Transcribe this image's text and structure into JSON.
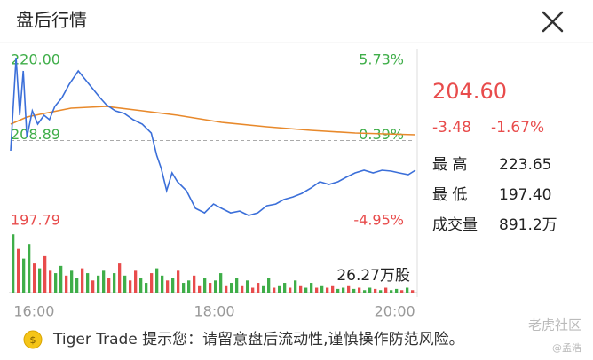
{
  "header": {
    "title": "盘后行情"
  },
  "quote": {
    "price": "204.60",
    "change": "-3.48",
    "change_pct": "-1.67%",
    "stats": [
      {
        "label": "最 高",
        "value": "223.65"
      },
      {
        "label": "最 低",
        "value": "197.40"
      },
      {
        "label": "成交量",
        "value": "891.2万"
      }
    ]
  },
  "notice": "Tiger Trade 提示您：请留意盘后流动性,谨慎操作防范风险。",
  "watermark": {
    "brand": "老虎社区",
    "author": "@孟浩"
  },
  "chart_data": [
    {
      "type": "line",
      "up_color": "#3fae49",
      "down_color": "#e84c4c",
      "xlim": [
        15.74,
        20.23
      ],
      "xticks": [
        {
          "value": 16,
          "label": "16:00"
        },
        {
          "value": 18,
          "label": "18:00"
        },
        {
          "value": 20,
          "label": "20:00"
        }
      ],
      "ylim": [
        197.79,
        220
      ],
      "yticks": [
        {
          "value": 220,
          "label": "220.00"
        },
        208.89,
        197.79
      ],
      "y2lim": [
        -4.95,
        5.73
      ],
      "y2ticks": [
        {
          "value": 5.73,
          "label": "5.73%"
        },
        {
          "value": 0.39,
          "label": "0.39%"
        },
        {
          "value": -4.95,
          "label": "-4.95%"
        }
      ],
      "series": [
        {
          "color": "#3b6fd9",
          "x": [
            15.74,
            15.8,
            15.84,
            15.88,
            15.92,
            15.98,
            16.04,
            16.11,
            16.17,
            16.23,
            16.31,
            16.39,
            16.49,
            16.57,
            16.65,
            16.73,
            16.8,
            16.9,
            17.0,
            17.1,
            17.2,
            17.3,
            17.36,
            17.41,
            17.47,
            17.53,
            17.59,
            17.69,
            17.79,
            17.89,
            17.99,
            18.08,
            18.18,
            18.28,
            18.38,
            18.48,
            18.58,
            18.68,
            18.77,
            18.87,
            18.97,
            19.07,
            19.17,
            19.27,
            19.37,
            19.46,
            19.56,
            19.66,
            19.76,
            19.86,
            19.96,
            20.05,
            20.15,
            20.23
          ],
          "values": [
            207.57,
            219.65,
            212.17,
            217.93,
            209.3,
            212.75,
            211.02,
            212.17,
            211.6,
            213.32,
            214.48,
            216.2,
            217.93,
            216.78,
            215.63,
            214.48,
            213.55,
            212.75,
            212.4,
            211.6,
            211.02,
            209.87,
            206.99,
            205.27,
            202.39,
            204.69,
            203.54,
            202.39,
            200.09,
            199.51,
            200.66,
            200.09,
            199.51,
            199.74,
            199.17,
            199.51,
            200.43,
            200.66,
            201.24,
            201.58,
            202.04,
            202.73,
            203.54,
            203.2,
            203.54,
            204.12,
            204.69,
            205.04,
            204.69,
            205.04,
            204.92,
            204.69,
            204.46,
            205.04
          ]
        },
        {
          "color": "#e8892b",
          "x": [
            15.74,
            15.92,
            16.11,
            16.41,
            16.8,
            17.2,
            17.59,
            18.08,
            18.58,
            19.07,
            19.56,
            20.23
          ],
          "values": [
            211.02,
            211.94,
            212.4,
            213.09,
            213.32,
            212.75,
            212.17,
            211.25,
            210.68,
            210.22,
            209.87,
            209.64
          ]
        }
      ]
    },
    {
      "type": "bar",
      "ylim": [
        0,
        26.27
      ],
      "yticks": [
        {
          "value": 26.27,
          "label": "26.27万股"
        }
      ],
      "values": [
        24,
        18,
        14,
        20,
        12,
        10,
        15,
        9,
        8,
        11,
        7,
        9,
        6,
        10,
        8,
        5,
        7,
        9,
        6,
        8,
        12,
        7,
        5,
        9,
        6,
        4,
        8,
        10,
        7,
        5,
        6,
        9,
        4,
        5,
        7,
        3,
        6,
        4,
        5,
        8,
        3,
        4,
        6,
        3,
        5,
        2,
        4,
        3,
        6,
        2,
        3,
        4,
        2,
        5,
        3,
        2,
        4,
        2,
        3,
        2,
        3,
        1.5,
        2,
        3,
        1.5,
        2,
        1,
        2,
        1.5,
        1,
        2,
        1,
        1.5,
        1,
        2,
        1
      ],
      "colors": [
        "#3fae49",
        "#e84c4c",
        "#3fae49",
        "#3fae49",
        "#e84c4c",
        "#3fae49",
        "#e84c4c",
        "#e84c4c",
        "#3fae49",
        "#3fae49",
        "#e84c4c",
        "#3fae49",
        "#3fae49",
        "#e84c4c",
        "#3fae49",
        "#e84c4c",
        "#3fae49",
        "#3fae49",
        "#e84c4c",
        "#3fae49",
        "#e84c4c",
        "#3fae49",
        "#e84c4c",
        "#e84c4c",
        "#3fae49",
        "#3fae49",
        "#e84c4c",
        "#3fae49",
        "#3fae49",
        "#e84c4c",
        "#3fae49",
        "#e84c4c",
        "#3fae49",
        "#3fae49",
        "#e84c4c",
        "#e84c4c",
        "#3fae49",
        "#e84c4c",
        "#3fae49",
        "#3fae49",
        "#e84c4c",
        "#3fae49",
        "#3fae49",
        "#e84c4c",
        "#3fae49",
        "#e84c4c",
        "#e84c4c",
        "#3fae49",
        "#3fae49",
        "#e84c4c",
        "#3fae49",
        "#3fae49",
        "#e84c4c",
        "#3fae49",
        "#e84c4c",
        "#3fae49",
        "#3fae49",
        "#e84c4c",
        "#3fae49",
        "#e84c4c",
        "#e84c4c",
        "#3fae49",
        "#3fae49",
        "#e84c4c",
        "#3fae49",
        "#e84c4c",
        "#3fae49",
        "#3fae49",
        "#e84c4c",
        "#3fae49",
        "#e84c4c",
        "#3fae49",
        "#3fae49",
        "#e84c4c",
        "#3fae49",
        "#e84c4c"
      ]
    }
  ]
}
